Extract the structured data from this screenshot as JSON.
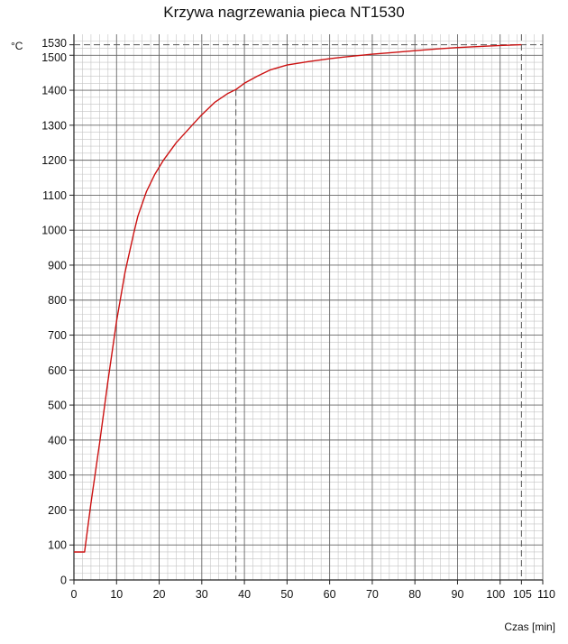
{
  "chart_data": {
    "type": "line",
    "title": "Krzywa nagrzewania pieca NT1530",
    "ylabel": "°C",
    "xlabel": "Czas [min]",
    "xlim": [
      0,
      110
    ],
    "ylim": [
      0,
      1530
    ],
    "x_ticks": [
      0,
      10,
      20,
      30,
      40,
      50,
      60,
      70,
      80,
      90,
      100,
      105,
      110
    ],
    "y_ticks": [
      0,
      100,
      200,
      300,
      400,
      500,
      600,
      700,
      800,
      900,
      1000,
      1100,
      1200,
      1300,
      1400,
      1500,
      1530
    ],
    "grid": true,
    "series": [
      {
        "color": "#cc1111",
        "x": [
          0,
          2.5,
          4,
          6,
          8,
          10,
          12,
          14,
          15,
          17,
          19,
          21,
          24,
          27,
          30,
          33,
          36,
          38,
          40,
          43,
          46,
          50,
          55,
          60,
          65,
          70,
          75,
          80,
          85,
          90,
          95,
          100,
          105
        ],
        "y": [
          80,
          80,
          220,
          390,
          570,
          740,
          880,
          990,
          1040,
          1110,
          1160,
          1200,
          1250,
          1290,
          1330,
          1365,
          1390,
          1402,
          1420,
          1440,
          1458,
          1472,
          1482,
          1490,
          1497,
          1503,
          1508,
          1513,
          1518,
          1522,
          1525,
          1528,
          1530
        ]
      }
    ],
    "reference_lines": [
      {
        "axis": "x",
        "value": 38
      },
      {
        "axis": "x",
        "value": 105
      },
      {
        "axis": "y",
        "value": 1530
      }
    ]
  }
}
